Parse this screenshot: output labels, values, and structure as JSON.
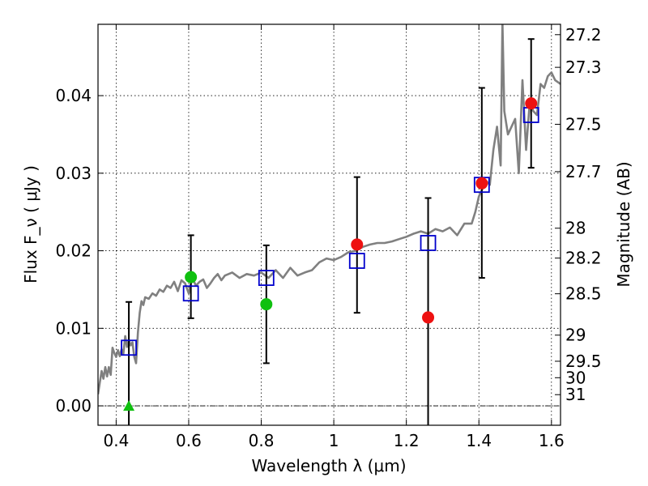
{
  "chart_data": {
    "type": "scatter",
    "title": "",
    "xlabel": "Wavelength  λ (μm)",
    "ylabel": "Flux  F_ν  ( μJy )",
    "y2label": "Magnitude (AB)",
    "xlim": [
      0.35,
      1.625
    ],
    "ylim": [
      -0.0025,
      0.0492
    ],
    "x_ticks": [
      0.4,
      0.6,
      0.8,
      1.0,
      1.2,
      1.4,
      1.6
    ],
    "x_tick_labels": [
      "0.4",
      "0.6",
      "0.8",
      "1",
      "1.2",
      "1.4",
      "1.6"
    ],
    "y_ticks": [
      0.0,
      0.01,
      0.02,
      0.03,
      0.04
    ],
    "y_tick_labels": [
      "0.00",
      "0.01",
      "0.02",
      "0.03",
      "0.04"
    ],
    "y2_ticks_mag": [
      "27.2",
      "27.3",
      "27.5",
      "27.7",
      "28",
      "28.2",
      "28.5",
      "29",
      "29.5",
      "30",
      "31"
    ],
    "grid": true,
    "zero_line": true,
    "colors": {
      "model": "#808080",
      "boxes": "#0000cc",
      "green": "#10c010",
      "red": "#ee1111",
      "errorbar": "#000000"
    },
    "series": [
      {
        "kind": "model",
        "x": [
          0.35,
          0.355,
          0.36,
          0.365,
          0.37,
          0.375,
          0.38,
          0.385,
          0.39,
          0.395,
          0.4,
          0.405,
          0.41,
          0.415,
          0.42,
          0.425,
          0.43,
          0.435,
          0.44,
          0.445,
          0.45,
          0.455,
          0.46,
          0.465,
          0.47,
          0.475,
          0.48,
          0.49,
          0.5,
          0.51,
          0.52,
          0.53,
          0.54,
          0.55,
          0.56,
          0.57,
          0.58,
          0.59,
          0.6,
          0.61,
          0.62,
          0.63,
          0.64,
          0.65,
          0.66,
          0.67,
          0.68,
          0.69,
          0.7,
          0.72,
          0.74,
          0.76,
          0.78,
          0.8,
          0.82,
          0.84,
          0.86,
          0.88,
          0.9,
          0.92,
          0.94,
          0.96,
          0.98,
          1.0,
          1.02,
          1.04,
          1.06,
          1.08,
          1.1,
          1.12,
          1.14,
          1.16,
          1.18,
          1.2,
          1.22,
          1.24,
          1.26,
          1.28,
          1.3,
          1.32,
          1.34,
          1.36,
          1.38,
          1.39,
          1.4,
          1.41,
          1.42,
          1.43,
          1.44,
          1.45,
          1.46,
          1.465,
          1.47,
          1.48,
          1.49,
          1.5,
          1.51,
          1.52,
          1.53,
          1.54,
          1.55,
          1.56,
          1.57,
          1.58,
          1.59,
          1.6,
          1.61,
          1.625
        ],
        "y": [
          0.0015,
          0.003,
          0.0045,
          0.0035,
          0.005,
          0.0038,
          0.005,
          0.004,
          0.0075,
          0.0068,
          0.0063,
          0.0072,
          0.0064,
          0.0073,
          0.0067,
          0.009,
          0.0076,
          0.0085,
          0.0078,
          0.0082,
          0.0063,
          0.0055,
          0.0095,
          0.012,
          0.0135,
          0.013,
          0.014,
          0.0138,
          0.0145,
          0.0142,
          0.015,
          0.0147,
          0.0155,
          0.0152,
          0.016,
          0.0148,
          0.0162,
          0.0158,
          0.0145,
          0.0165,
          0.0155,
          0.016,
          0.0163,
          0.0152,
          0.0158,
          0.0165,
          0.017,
          0.0162,
          0.0168,
          0.0172,
          0.0165,
          0.017,
          0.0168,
          0.0172,
          0.0165,
          0.0175,
          0.0165,
          0.0178,
          0.0168,
          0.0172,
          0.0175,
          0.0185,
          0.019,
          0.0188,
          0.0192,
          0.0198,
          0.02,
          0.0205,
          0.0208,
          0.021,
          0.021,
          0.0212,
          0.0215,
          0.0218,
          0.0222,
          0.0225,
          0.0222,
          0.0228,
          0.0225,
          0.023,
          0.022,
          0.0235,
          0.0235,
          0.025,
          0.027,
          0.028,
          0.029,
          0.0285,
          0.033,
          0.036,
          0.031,
          0.0495,
          0.038,
          0.035,
          0.036,
          0.037,
          0.03,
          0.042,
          0.033,
          0.039,
          0.038,
          0.0375,
          0.0415,
          0.041,
          0.0425,
          0.043,
          0.042,
          0.0415
        ]
      },
      {
        "kind": "model-photometry",
        "marker": "open-square",
        "x": [
          0.435,
          0.606,
          0.814,
          1.064,
          1.26,
          1.408,
          1.544
        ],
        "y": [
          0.0075,
          0.0145,
          0.0165,
          0.0187,
          0.021,
          0.0285,
          0.0375
        ]
      },
      {
        "kind": "observed",
        "marker": "circle",
        "x": [
          0.606,
          0.814
        ],
        "y": [
          0.0166,
          0.0131
        ],
        "yerr_low": [
          0.0113,
          0.0055
        ],
        "yerr_high": [
          0.022,
          0.0207
        ],
        "color": "green"
      },
      {
        "kind": "observed",
        "marker": "circle",
        "x": [
          1.064,
          1.26,
          1.408,
          1.544
        ],
        "y": [
          0.0208,
          0.0114,
          0.0287,
          0.039
        ],
        "yerr_low": [
          0.012,
          -0.0025,
          0.0165,
          0.0307
        ],
        "yerr_high": [
          0.0295,
          0.0268,
          0.041,
          0.0473
        ],
        "color": "red"
      },
      {
        "kind": "observed",
        "marker": "triangle",
        "x": [
          0.435
        ],
        "y": [
          0.0
        ],
        "yerr_low": [
          -0.0025
        ],
        "yerr_high": [
          0.0134
        ],
        "color": "green"
      }
    ]
  }
}
